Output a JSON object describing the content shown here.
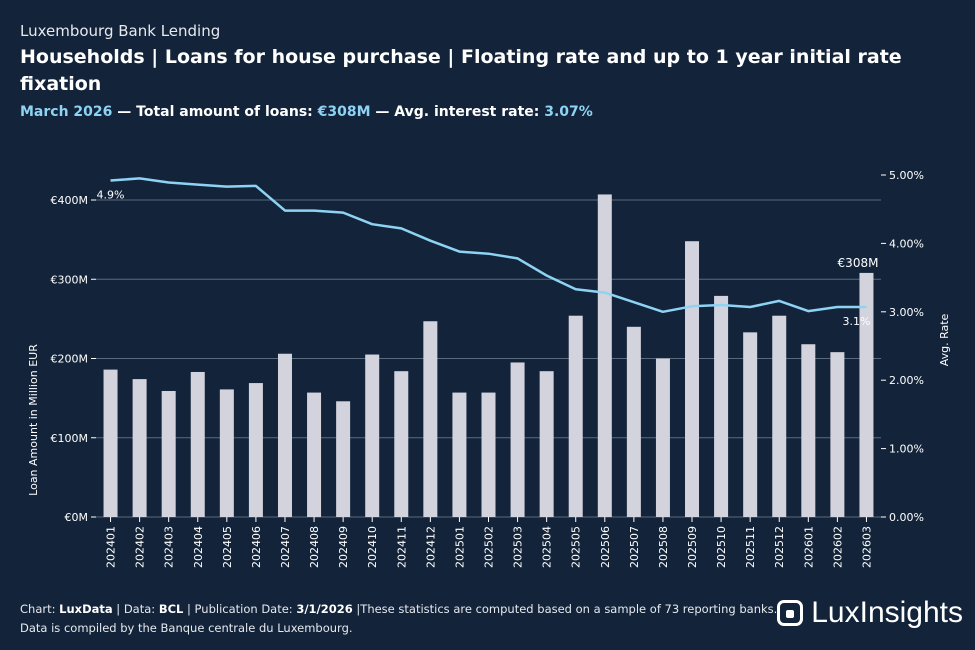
{
  "header": {
    "kicker": "Luxembourg Bank Lending",
    "title": "Households | Loans for house purchase | Floating rate and up to 1 year initial rate fixation",
    "period": "March 2026",
    "sep1": " — ",
    "total_label": "Total amount of loans: ",
    "total_value": "€308M",
    "sep2": " — ",
    "rate_label": "Avg. interest rate: ",
    "rate_value": "3.07%"
  },
  "footer": {
    "chart_label": "Chart: ",
    "chart_value": "LuxData",
    "data_label": " | Data: ",
    "data_value": "BCL",
    "pub_label": " | Publication Date: ",
    "pub_value": "3/1/2026",
    "note": " |These statistics are computed based on a sample of 73 reporting banks.",
    "line2": "Data is compiled by the Banque centrale du Luxembourg."
  },
  "logo": {
    "text": "LuxInsights",
    "icon": "luxinsights-logo-icon"
  },
  "colors": {
    "background": "#13243a",
    "bar": "#d3d3de",
    "line": "#8ed3f4",
    "grid": "#5a6a7e",
    "text": "#ffffff"
  },
  "chart_data": {
    "type": "bar",
    "categories": [
      "202401",
      "202402",
      "202403",
      "202404",
      "202405",
      "202406",
      "202407",
      "202408",
      "202409",
      "202410",
      "202411",
      "202412",
      "202501",
      "202502",
      "202503",
      "202504",
      "202505",
      "202506",
      "202507",
      "202508",
      "202509",
      "202510",
      "202511",
      "202512",
      "202601",
      "202602",
      "202603"
    ],
    "series": [
      {
        "type": "bar",
        "axis": "left",
        "values": [
          186,
          174,
          159,
          183,
          161,
          169,
          206,
          157,
          146,
          205,
          184,
          247,
          157,
          157,
          195,
          184,
          254,
          407,
          240,
          200,
          348,
          279,
          233,
          254,
          218,
          208,
          308
        ]
      },
      {
        "type": "line",
        "axis": "right",
        "values": [
          4.92,
          4.95,
          4.89,
          4.86,
          4.83,
          4.84,
          4.48,
          4.48,
          4.45,
          4.28,
          4.22,
          4.04,
          3.88,
          3.85,
          3.78,
          3.53,
          3.33,
          3.28,
          3.14,
          3.0,
          3.08,
          3.1,
          3.07,
          3.16,
          3.01,
          3.07,
          3.07
        ]
      }
    ],
    "ylabel_left": "Loan Amount in Million EUR",
    "ylabel_right": "Avg. Rate",
    "ylim_left": [
      0,
      400
    ],
    "yticks_left": [
      "€0M",
      "€100M",
      "€200M",
      "€300M",
      "€400M"
    ],
    "ylim_right": [
      0,
      5
    ],
    "yticks_right": [
      "0.00%",
      "1.00%",
      "2.00%",
      "3.00%",
      "4.00%",
      "5.00%"
    ],
    "annotations": {
      "first_rate": "4.9%",
      "last_rate": "3.1%",
      "last_amount": "€308M"
    },
    "grid": true
  }
}
